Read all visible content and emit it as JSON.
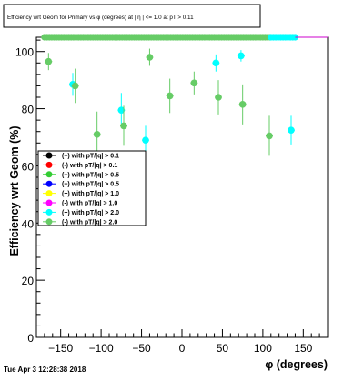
{
  "chart_data": {
    "type": "scatter",
    "title": "Efficiency wrt Geom for Primary vs φ (degrees) at | η | <= 1.0 at pT > 0.11",
    "xlabel": "φ (degrees)",
    "ylabel": "Efficiency wrt Geom (%)",
    "xlim": [
      -180,
      180
    ],
    "ylim": [
      0,
      105
    ],
    "x_ticks": [
      -150,
      -100,
      -50,
      0,
      50,
      100,
      150
    ],
    "x_tick_labels": [
      "−150",
      "−100",
      "−50",
      "0",
      "50",
      "100",
      "150"
    ],
    "y_ticks": [
      0,
      20,
      40,
      60,
      80,
      100
    ],
    "y_tick_labels": [
      "0",
      "20",
      "40",
      "60",
      "80",
      "100"
    ],
    "grid": false,
    "legend_position": "left",
    "series": [
      {
        "name": "(+) with pT/|q| > 0.1",
        "color": "#000000",
        "points": []
      },
      {
        "name": "(-) with pT/|q| > 0.1",
        "color": "#ff0000",
        "points": []
      },
      {
        "name": "(+) with pT/|q| > 0.5",
        "color": "#33cc33",
        "points": []
      },
      {
        "name": "(+) with pT/|q| > 0.5",
        "color": "#0000ff",
        "points": []
      },
      {
        "name": "(+) with pT/|q| > 1.0",
        "color": "#ffff00",
        "points": []
      },
      {
        "name": "(-) with pT/|q| > 1.0",
        "color": "#ff00ff",
        "points": []
      },
      {
        "name": "(+) with pT/|q| > 2.0",
        "color": "#00ffff",
        "points": [
          {
            "x": -135,
            "y": 88.5,
            "err": 4
          },
          {
            "x": -75,
            "y": 79.5,
            "err": 6
          },
          {
            "x": -45,
            "y": 69,
            "err": 5
          },
          {
            "x": 42,
            "y": 96,
            "err": 3
          },
          {
            "x": 73,
            "y": 98.5,
            "err": 2
          },
          {
            "x": 135,
            "y": 72.5,
            "err": 5
          }
        ]
      },
      {
        "name": "(-) with pT/|q| > 2.0",
        "color": "#66cc66",
        "points": [
          {
            "x": -165,
            "y": 96.5,
            "err": 3
          },
          {
            "x": -132,
            "y": 88,
            "err": 6
          },
          {
            "x": -105,
            "y": 71,
            "err": 8
          },
          {
            "x": -72,
            "y": 74,
            "err": 7
          },
          {
            "x": -40,
            "y": 98,
            "err": 3
          },
          {
            "x": -15,
            "y": 84.5,
            "err": 6
          },
          {
            "x": 15,
            "y": 89,
            "err": 4
          },
          {
            "x": 45,
            "y": 84,
            "err": 6
          },
          {
            "x": 75,
            "y": 81.5,
            "err": 7
          },
          {
            "x": 108,
            "y": 70.5,
            "err": 7
          }
        ]
      }
    ],
    "saturated_band": [
      {
        "color": "#66cc66",
        "from": -170,
        "to": 110,
        "y": 105
      },
      {
        "color": "#00ffff",
        "from": 110,
        "to": 140,
        "y": 105
      }
    ],
    "reference_line": {
      "color": "#cc00cc",
      "from": 140,
      "to": 180,
      "y": 105
    }
  },
  "footer": {
    "timestamp": "Tue Apr  3 12:28:38 2018"
  }
}
